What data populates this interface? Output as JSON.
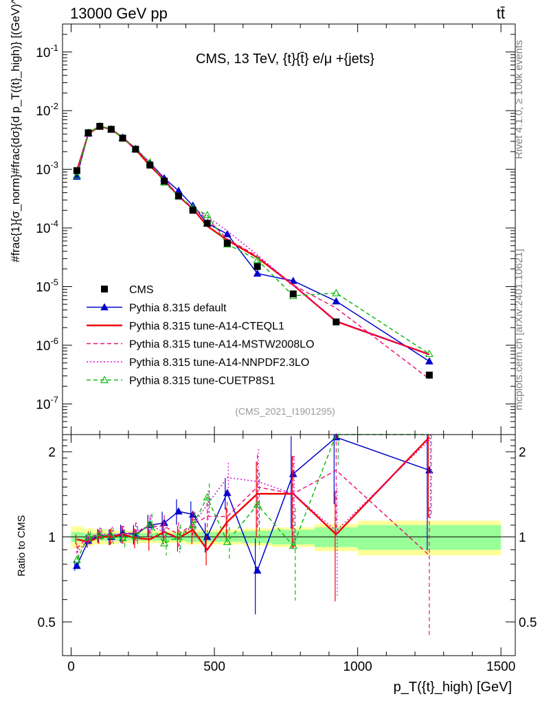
{
  "header": {
    "process": "13000 GeV pp",
    "final_state": "tt̄"
  },
  "side_labels": {
    "rivet": "Rivet 4.1.0, ≥ 100k events",
    "mcplots": "mcplots.cern.ch [arXiv:2401.10621]"
  },
  "chart_data": {
    "type": "line",
    "title": "CMS, 13 TeV, {t}{t̄} e/μ +{jets}",
    "analysis_id": "(CMS_2021_I1901295)",
    "xlabel": "p_T({t}_high) [GeV]",
    "ylabel": "#frac{1}{σ_norm}#frac{dσ}{d p_T({t}_high)} [(GeV)^-1]",
    "ratio_ylabel": "Ratio to CMS",
    "xlim": [
      -30,
      1550
    ],
    "ylim": [
      3e-08,
      0.3
    ],
    "yscale": "log",
    "ratio_ylim": [
      0.38,
      2.3
    ],
    "x_ticks": [
      0,
      500,
      1000,
      1500
    ],
    "x_tick_labels": [
      "0",
      "500",
      "1000",
      "1500"
    ],
    "y_ticks": [
      1e-07,
      1e-06,
      1e-05,
      0.0001,
      0.001,
      0.01,
      0.1
    ],
    "y_tick_labels": [
      "10^-7",
      "10^-6",
      "10^-5",
      "10^-4",
      "10^-3",
      "10^-2",
      "10^-1"
    ],
    "ratio_ticks": [
      0.5,
      1,
      2
    ],
    "ratio_tick_labels": [
      "0.5",
      "1",
      "2"
    ],
    "x": [
      20,
      60,
      100,
      140,
      180,
      225,
      275,
      325,
      375,
      425,
      475,
      545,
      650,
      775,
      925,
      1250
    ],
    "bin_edges": [
      0,
      40,
      80,
      120,
      160,
      200,
      250,
      300,
      350,
      400,
      450,
      500,
      600,
      700,
      850,
      1000,
      1500
    ],
    "data": {
      "name": "CMS",
      "values": [
        0.00095,
        0.0042,
        0.0054,
        0.0048,
        0.0034,
        0.0022,
        0.00118,
        0.00063,
        0.00035,
        0.0002,
        0.00012,
        5.5e-05,
        2.2e-05,
        7.5e-06,
        2.5e-06,
        3.1e-07
      ],
      "band_stat": [
        0.04,
        0.03,
        0.03,
        0.03,
        0.03,
        0.03,
        0.03,
        0.03,
        0.03,
        0.04,
        0.04,
        0.04,
        0.05,
        0.06,
        0.08,
        0.1,
        0.18
      ],
      "band_total": [
        0.09,
        0.07,
        0.06,
        0.06,
        0.05,
        0.05,
        0.05,
        0.05,
        0.05,
        0.06,
        0.06,
        0.06,
        0.07,
        0.08,
        0.11,
        0.14,
        0.22
      ]
    },
    "series": [
      {
        "name": "Pythia 8.315 default",
        "color": "#0000cc",
        "style": "solid",
        "marker": "triangle-filled",
        "ratio": [
          0.79,
          0.97,
          1.01,
          1.0,
          1.03,
          1.02,
          1.1,
          1.12,
          1.23,
          1.2,
          1.0,
          1.43,
          0.76,
          1.67,
          2.25,
          1.72
        ]
      },
      {
        "name": "Pythia 8.315 tune-A14-CTEQL1",
        "color": "#ee0000",
        "style": "solid",
        "marker": "none",
        "ratio": [
          0.98,
          0.96,
          1.0,
          1.0,
          1.02,
          0.99,
          0.98,
          1.04,
          0.99,
          1.06,
          0.9,
          1.13,
          1.42,
          1.42,
          1.02,
          2.25
        ]
      },
      {
        "name": "Pythia 8.315 tune-A14-MSTW2008LO",
        "color": "#ee1177",
        "style": "dashed",
        "marker": "none",
        "ratio": [
          0.91,
          1.0,
          1.02,
          1.01,
          1.02,
          1.04,
          1.09,
          1.09,
          1.02,
          1.11,
          1.18,
          1.18,
          1.5,
          1.42,
          1.72,
          0.86
        ]
      },
      {
        "name": "Pythia 8.315 tune-A14-NNPDF2.3LO",
        "color": "#dd00dd",
        "style": "dotted",
        "marker": "none",
        "ratio": [
          0.88,
          0.98,
          1.02,
          1.02,
          1.02,
          1.04,
          1.1,
          1.04,
          0.98,
          1.1,
          1.3,
          1.62,
          1.57,
          1.42,
          1.05,
          2.2
        ]
      },
      {
        "name": "Pythia 8.315 tune-CUETP8S1",
        "color": "#11bb11",
        "style": "dashed",
        "marker": "triangle-open",
        "ratio": [
          0.83,
          1.0,
          1.01,
          1.01,
          0.99,
          1.01,
          1.11,
          0.95,
          1.0,
          1.1,
          1.38,
          0.96,
          1.3,
          0.93,
          3.1,
          2.3
        ]
      }
    ]
  }
}
